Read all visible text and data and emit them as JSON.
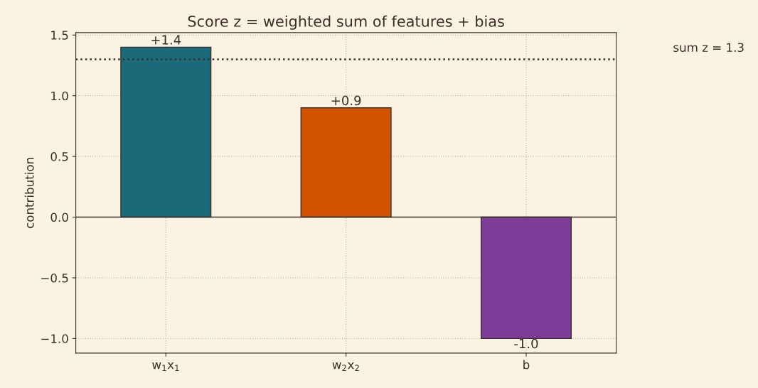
{
  "chart_data": {
    "type": "bar",
    "title": "Score z = weighted sum of features + bias",
    "ylabel": "contribution",
    "categories": [
      "w$_{1}$x$_{1}$",
      "w$_{2}$x$_{2}$",
      "b"
    ],
    "values": [
      1.4,
      0.9,
      -1.0
    ],
    "colors": [
      "#1a6a7a",
      "#d35400",
      "#7d3c98"
    ],
    "value_labels": [
      "+1.4",
      "+0.9",
      "-1.0"
    ],
    "ylim": [
      -1.12,
      1.52
    ],
    "yticks": [
      {
        "value": -1.0,
        "label": "−1.0"
      },
      {
        "value": -0.5,
        "label": "−0.5"
      },
      {
        "value": 0.0,
        "label": "0.0"
      },
      {
        "value": 0.5,
        "label": "0.5"
      },
      {
        "value": 1.0,
        "label": "1.0"
      },
      {
        "value": 1.5,
        "label": "1.5"
      }
    ],
    "ref_lines": [
      {
        "axis": "y",
        "value": 1.3,
        "line_style": "dotted",
        "color": "#3a2f28"
      },
      {
        "axis": "y",
        "value": 0,
        "line_style": "solid",
        "color": "#3a2f28"
      }
    ],
    "annotations": [
      "sum z = 1.3"
    ],
    "grid": true
  }
}
